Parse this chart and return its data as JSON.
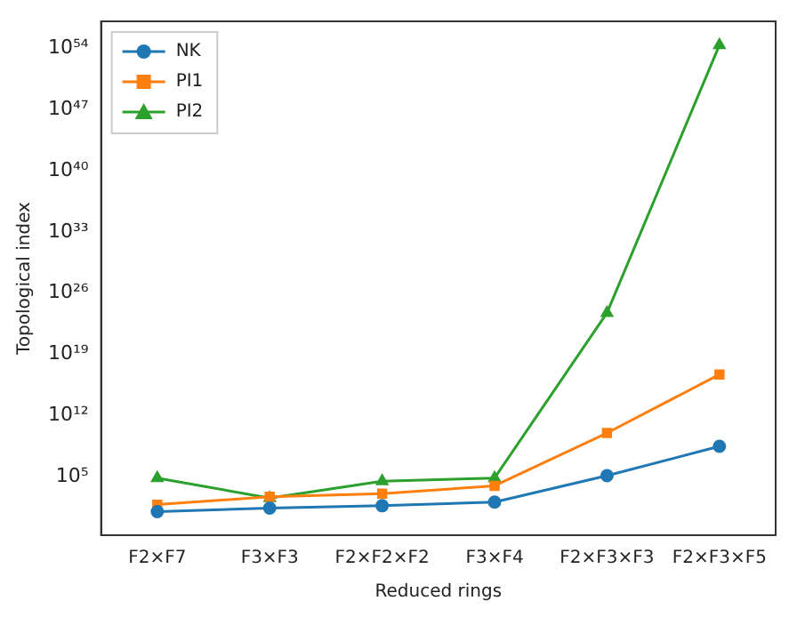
{
  "chart_data": {
    "type": "line",
    "xlabel": "Reduced rings",
    "ylabel": "Topological index",
    "categories": [
      "F2×F7",
      "F3×F3",
      "F2×F2×F2",
      "F3×F4",
      "F2×F3×F3",
      "F2×F3×F5"
    ],
    "series": [
      {
        "name": "NK",
        "color": "#1f77b4",
        "marker": "circle",
        "values": [
          10,
          25,
          47,
          125,
          130000,
          300000000
        ]
      },
      {
        "name": "PI1",
        "color": "#ff7f0e",
        "marker": "square",
        "values": [
          63,
          500,
          1150,
          9000,
          10000000000,
          50000000000000000
        ]
      },
      {
        "name": "PI2",
        "color": "#2ca02c",
        "marker": "triangle",
        "values": [
          70000,
          360,
          30000,
          70000,
          5.6e+23,
          2.5e+54
        ]
      }
    ],
    "log": "y",
    "ylim": [
      0.02,
      1.3e+57
    ],
    "yticks": [
      {
        "value": 100000.0,
        "label": "10⁵"
      },
      {
        "value": 1000000000000.0,
        "label": "10¹²"
      },
      {
        "value": 1e+19,
        "label": "10¹⁹"
      },
      {
        "value": 1e+26,
        "label": "10²⁶"
      },
      {
        "value": 1e+33,
        "label": "10³³"
      },
      {
        "value": 1e+40,
        "label": "10⁴⁰"
      },
      {
        "value": 1e+47,
        "label": "10⁴⁷"
      },
      {
        "value": 1e+54,
        "label": "10⁵⁴"
      }
    ],
    "grid": false,
    "legend": "top left",
    "line_style": "solid"
  }
}
